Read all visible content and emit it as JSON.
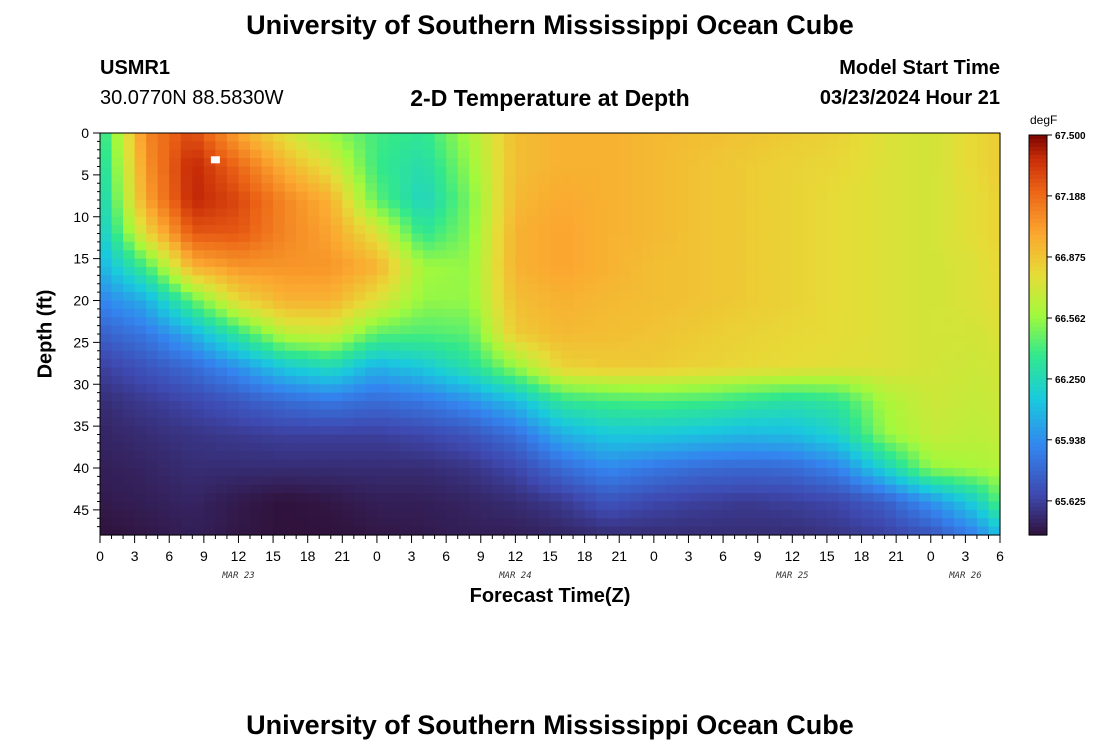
{
  "header": {
    "title": "University of Southern Mississippi Ocean Cube",
    "station": "USMR1",
    "coords": "30.0770N  88.5830W",
    "plot_title": "2-D Temperature at Depth",
    "model_label": "Model Start Time",
    "model_time": "03/23/2024 Hour 21"
  },
  "footer": {
    "title": "University of Southern Mississippi Ocean Cube"
  },
  "chart_data": {
    "type": "heatmap",
    "title": "2-D Temperature at Depth",
    "xlabel": "Forecast Time(Z)",
    "ylabel": "Depth (ft)",
    "x_range_hours": [
      0,
      78
    ],
    "y_range": [
      0,
      48
    ],
    "x_ticks": [
      "0",
      "3",
      "6",
      "9",
      "12",
      "15",
      "18",
      "21",
      "0",
      "3",
      "6",
      "9",
      "12",
      "15",
      "18",
      "21",
      "0",
      "3",
      "6",
      "9",
      "12",
      "15",
      "18",
      "21",
      "0",
      "3",
      "6"
    ],
    "x_tick_hours": [
      0,
      3,
      6,
      9,
      12,
      15,
      18,
      21,
      24,
      27,
      30,
      33,
      36,
      39,
      42,
      45,
      48,
      51,
      54,
      57,
      60,
      63,
      66,
      69,
      72,
      75,
      78
    ],
    "y_ticks": [
      0,
      5,
      10,
      15,
      20,
      25,
      30,
      35,
      40,
      45
    ],
    "date_labels": [
      {
        "text": "MAR 23",
        "hour": 12
      },
      {
        "text": "MAR 24",
        "hour": 36
      },
      {
        "text": "MAR 25",
        "hour": 60
      },
      {
        "text": "MAR 26",
        "hour": 75
      }
    ],
    "colorbar": {
      "unit": "degF",
      "min": 65.45,
      "max": 67.5,
      "labels": [
        "67.500",
        "67.188",
        "66.875",
        "66.562",
        "66.250",
        "65.938",
        "65.625"
      ],
      "label_values": [
        67.5,
        67.188,
        66.875,
        66.562,
        66.25,
        65.938,
        65.625
      ]
    },
    "marker": {
      "hour": 10,
      "depth": 3.2
    },
    "field_description": "temperature (degF) vs forecast hour and depth",
    "hours": [
      0,
      4,
      8,
      12,
      16,
      20,
      24,
      28,
      32,
      36,
      40,
      44,
      48,
      52,
      56,
      60,
      64,
      68,
      72,
      76,
      78
    ],
    "depths": [
      0,
      4,
      8,
      12,
      16,
      20,
      24,
      28,
      32,
      36,
      40,
      44,
      48
    ],
    "temperature_grid": [
      [
        66.3,
        67.1,
        67.3,
        67.0,
        66.75,
        66.55,
        66.4,
        66.35,
        66.6,
        66.9,
        66.95,
        66.95,
        66.92,
        66.9,
        66.88,
        66.85,
        66.82,
        66.75,
        66.72,
        66.8,
        66.85
      ],
      [
        66.25,
        67.05,
        67.4,
        67.2,
        66.95,
        66.75,
        66.38,
        66.28,
        66.55,
        66.9,
        66.95,
        66.95,
        66.92,
        66.88,
        66.85,
        66.82,
        66.8,
        66.75,
        66.72,
        66.8,
        66.85
      ],
      [
        66.2,
        67.0,
        67.4,
        67.3,
        67.1,
        66.95,
        66.45,
        66.22,
        66.5,
        66.92,
        66.98,
        66.95,
        66.92,
        66.88,
        66.85,
        66.82,
        66.78,
        66.75,
        66.72,
        66.78,
        66.82
      ],
      [
        66.15,
        66.8,
        67.25,
        67.25,
        67.1,
        67.0,
        66.75,
        66.35,
        66.52,
        66.95,
        67.0,
        66.95,
        66.92,
        66.88,
        66.85,
        66.82,
        66.78,
        66.75,
        66.72,
        66.78,
        66.82
      ],
      [
        66.05,
        66.4,
        66.95,
        67.05,
        67.05,
        67.05,
        66.95,
        66.58,
        66.55,
        66.95,
        67.0,
        66.95,
        66.9,
        66.88,
        66.85,
        66.82,
        66.78,
        66.75,
        66.72,
        66.75,
        66.8
      ],
      [
        65.9,
        66.05,
        66.45,
        66.8,
        66.95,
        66.95,
        66.75,
        66.55,
        66.55,
        66.9,
        66.95,
        66.92,
        66.9,
        66.88,
        66.85,
        66.82,
        66.78,
        66.75,
        66.72,
        66.75,
        66.78
      ],
      [
        65.75,
        65.85,
        66.05,
        66.35,
        66.65,
        66.7,
        66.45,
        66.42,
        66.45,
        66.85,
        66.92,
        66.9,
        66.88,
        66.85,
        66.82,
        66.8,
        66.78,
        66.75,
        66.72,
        66.72,
        66.75
      ],
      [
        65.62,
        65.7,
        65.8,
        65.95,
        66.15,
        66.25,
        66.05,
        66.15,
        66.3,
        66.55,
        66.82,
        66.85,
        66.85,
        66.82,
        66.8,
        66.78,
        66.76,
        66.75,
        66.72,
        66.7,
        66.72
      ],
      [
        65.55,
        65.6,
        65.65,
        65.72,
        65.8,
        65.85,
        65.8,
        65.85,
        65.95,
        66.1,
        66.35,
        66.4,
        66.42,
        66.4,
        66.35,
        66.3,
        66.35,
        66.6,
        66.7,
        66.68,
        66.7
      ],
      [
        65.52,
        65.55,
        65.58,
        65.6,
        65.62,
        65.62,
        65.62,
        65.65,
        65.7,
        65.82,
        66.05,
        66.15,
        66.15,
        66.12,
        66.08,
        66.1,
        66.2,
        66.55,
        66.68,
        66.65,
        66.68
      ],
      [
        65.5,
        65.52,
        65.55,
        65.55,
        65.55,
        65.55,
        65.55,
        65.55,
        65.58,
        65.65,
        65.8,
        65.92,
        65.85,
        65.8,
        65.78,
        65.8,
        65.9,
        66.2,
        66.55,
        66.6,
        66.62
      ],
      [
        65.48,
        65.5,
        65.52,
        65.48,
        65.45,
        65.47,
        65.5,
        65.5,
        65.52,
        65.55,
        65.6,
        65.7,
        65.65,
        65.62,
        65.6,
        65.62,
        65.65,
        65.75,
        65.95,
        66.2,
        66.45
      ],
      [
        65.45,
        65.47,
        65.5,
        65.47,
        65.45,
        65.45,
        65.47,
        65.48,
        65.5,
        65.5,
        65.52,
        65.55,
        65.55,
        65.55,
        65.55,
        65.55,
        65.58,
        65.62,
        65.7,
        65.9,
        66.1
      ]
    ]
  }
}
